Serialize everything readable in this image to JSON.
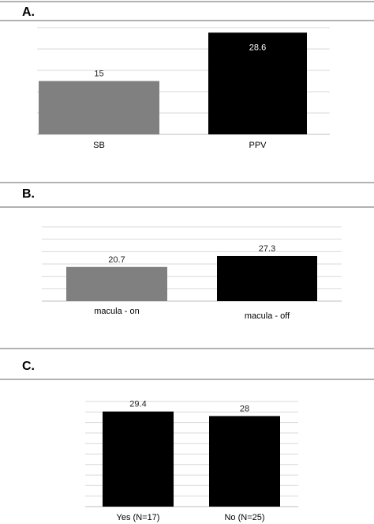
{
  "chart_data": [
    {
      "panel": "A.",
      "type": "bar",
      "categories": [
        "SB",
        "PPV"
      ],
      "values": [
        15,
        28.6
      ],
      "value_labels": [
        "15",
        "28.6"
      ],
      "colors": [
        "#808080",
        "#000000"
      ],
      "ylim": [
        0,
        30
      ],
      "grid": true
    },
    {
      "panel": "B.",
      "type": "bar",
      "categories": [
        "macula - on",
        "macula - off"
      ],
      "values": [
        20.7,
        27.3
      ],
      "value_labels": [
        "20.7",
        "27.3"
      ],
      "colors": [
        "#808080",
        "#000000"
      ],
      "ylim": [
        0,
        45
      ],
      "grid": true
    },
    {
      "panel": "C.",
      "type": "bar",
      "categories": [
        "Yes (N=17)",
        "No (N=25)"
      ],
      "values": [
        29.4,
        28
      ],
      "value_labels": [
        "29.4",
        "28"
      ],
      "colors": [
        "#000000",
        "#000000"
      ],
      "ylim": [
        0,
        32.5
      ],
      "grid": true
    }
  ]
}
